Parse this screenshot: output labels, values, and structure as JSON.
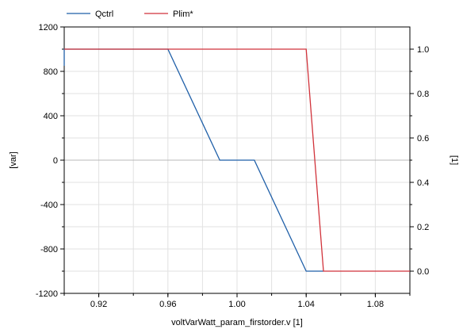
{
  "chart_data": {
    "type": "line",
    "title": "",
    "xlabel": "voltVarWatt_param_firstorder.v [1]",
    "ylabel_left": "[var]",
    "ylabel_right": "[1]",
    "xlim": [
      0.9,
      1.1
    ],
    "ylim_left": [
      -1200,
      1200
    ],
    "ylim_right": [
      -0.1,
      1.1
    ],
    "x_ticks": [
      "0.92",
      "0.96",
      "1.00",
      "1.04",
      "1.08"
    ],
    "y_left_ticks": [
      "1200",
      "800",
      "400",
      "0",
      "-400",
      "-800",
      "-1200"
    ],
    "y_right_ticks": [
      "1.0",
      "0.8",
      "0.6",
      "0.4",
      "0.2",
      "0.0"
    ],
    "grid": true,
    "legend_position": "top-left",
    "series": [
      {
        "name": "Qctrl",
        "axis": "left",
        "color": "#1f5fa8",
        "x": [
          0.9,
          0.9,
          0.96,
          0.99,
          1.01,
          1.04,
          1.05
        ],
        "y": [
          850,
          1000,
          1000,
          0,
          0,
          -1000,
          -1000
        ]
      },
      {
        "name": "Plim*",
        "axis": "right",
        "color": "#d1323a",
        "x": [
          0.9,
          1.04,
          1.05,
          1.1
        ],
        "y": [
          1.0,
          1.0,
          0.0,
          0.0
        ]
      }
    ]
  }
}
